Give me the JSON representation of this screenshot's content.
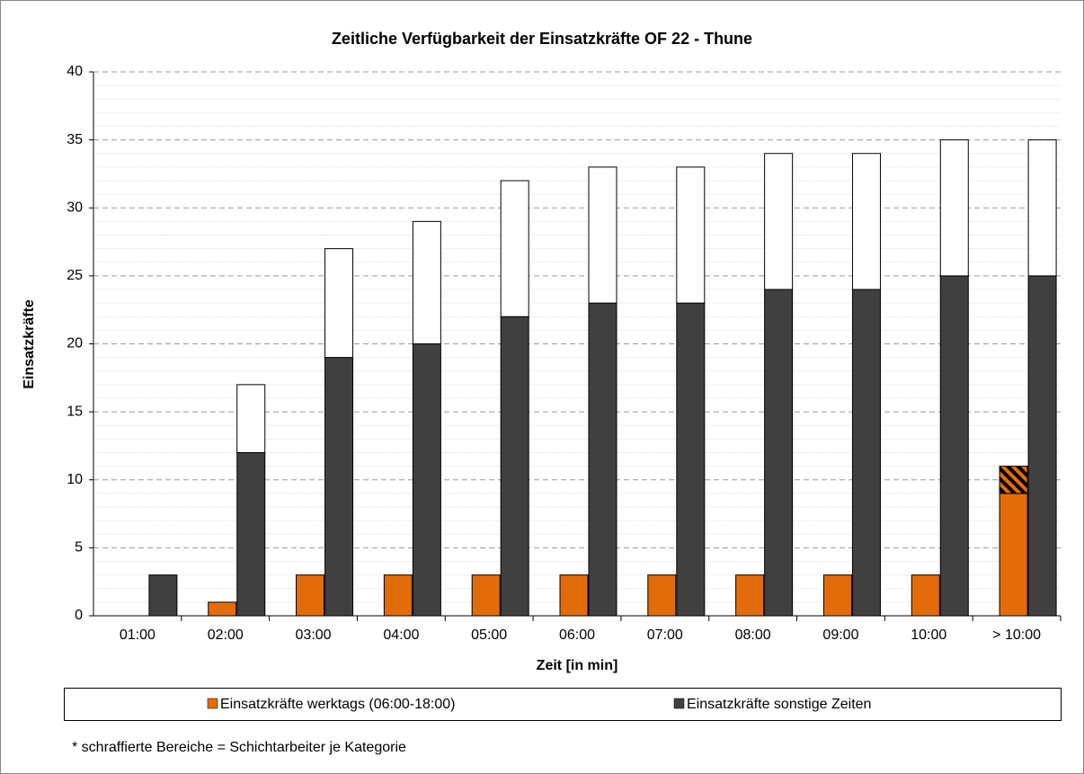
{
  "chart_data": {
    "type": "bar",
    "title": "Zeitliche Verfügbarkeit der Einsatzkräfte OF 22 - Thune",
    "x_label": "Zeit [in min]",
    "y_label": "Einsatzkräfte",
    "note": "* schraffierte Bereiche = Schichtarbeiter je Kategorie",
    "categories": [
      "01:00",
      "02:00",
      "03:00",
      "04:00",
      "05:00",
      "06:00",
      "07:00",
      "08:00",
      "09:00",
      "10:00",
      "> 10:00"
    ],
    "series": [
      {
        "name": "Einsatzkräfte werktags (06:00-18:00)",
        "color": "#e36c0a",
        "values": [
          0,
          1,
          3,
          3,
          3,
          3,
          3,
          3,
          3,
          3,
          9
        ],
        "stacked_values": [
          0,
          0,
          0,
          0,
          0,
          0,
          0,
          0,
          0,
          0,
          2
        ],
        "stacked_pattern": "hatch"
      },
      {
        "name": "Einsatzkräfte sonstige Zeiten",
        "color": "#404040",
        "values": [
          3,
          12,
          19,
          20,
          22,
          23,
          23,
          24,
          24,
          25,
          25
        ],
        "stacked_values": [
          0,
          5,
          8,
          9,
          10,
          10,
          10,
          10,
          10,
          10,
          10
        ],
        "stacked_color": "#ffffff"
      }
    ],
    "ylim": [
      0,
      40
    ],
    "yticks": [
      0,
      5,
      10,
      15,
      20,
      25,
      30,
      35,
      40
    ],
    "yticks_minor": [
      1,
      2,
      3,
      4,
      6,
      7,
      8,
      9,
      11,
      12,
      13,
      14,
      16,
      17,
      18,
      19,
      21,
      22,
      23,
      24,
      26,
      27,
      28,
      29,
      31,
      32,
      33,
      34,
      36,
      37,
      38,
      39
    ],
    "grid": true,
    "legend": "bottom"
  }
}
